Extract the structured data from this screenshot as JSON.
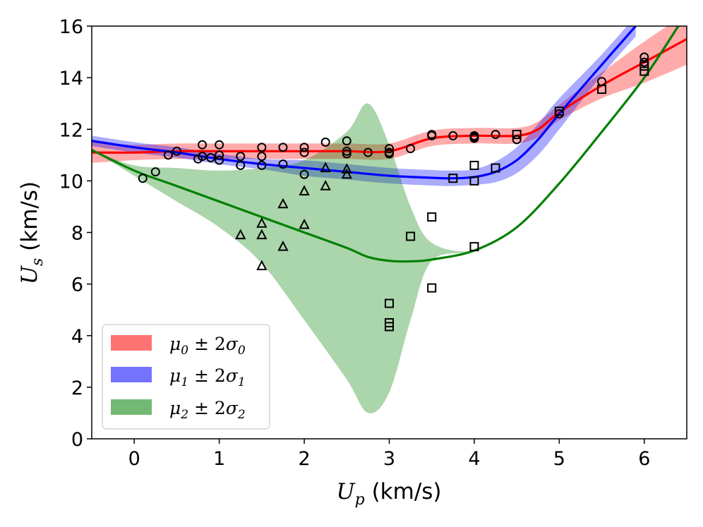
{
  "chart_data": {
    "type": "scatter",
    "title": "",
    "xlabel": "U_p (km/s)",
    "xlabel_main": "U",
    "xlabel_sub": "p",
    "xlabel_unit": " (km/s)",
    "ylabel": "U_s (km/s)",
    "ylabel_main": "U",
    "ylabel_sub": "s",
    "ylabel_unit": " (km/s)",
    "xlim": [
      -0.5,
      6.5
    ],
    "ylim": [
      0,
      16
    ],
    "xticks": [
      0,
      1,
      2,
      3,
      4,
      5,
      6
    ],
    "yticks": [
      0,
      2,
      4,
      6,
      8,
      10,
      12,
      14,
      16
    ],
    "grid": false,
    "legend_position": "lower-left",
    "legend": [
      {
        "label": "μ0 ± 2σ0",
        "mu": "μ",
        "sub": "0",
        "pm": " ± 2",
        "sigma": "σ",
        "sub2": "0",
        "color": "#ff0000"
      },
      {
        "label": "μ1 ± 2σ1",
        "mu": "μ",
        "sub": "1",
        "pm": " ± 2",
        "sigma": "σ",
        "sub2": "1",
        "color": "#0000ff"
      },
      {
        "label": "μ2 ± 2σ2",
        "mu": "μ",
        "sub": "2",
        "pm": " ± 2",
        "sigma": "σ",
        "sub2": "2",
        "color": "#008000"
      }
    ],
    "series": [
      {
        "name": "mu0",
        "color": "#ff0000",
        "x": [
          -0.5,
          0,
          0.5,
          1,
          1.5,
          2,
          2.5,
          3,
          3.5,
          4,
          4.5,
          4.75,
          5,
          5.5,
          6,
          6.5
        ],
        "mean": [
          11.1,
          11.1,
          11.15,
          11.15,
          11.15,
          11.15,
          11.15,
          11.15,
          11.65,
          11.75,
          11.75,
          12.0,
          12.65,
          13.7,
          14.6,
          15.5
        ],
        "sigma": [
          0.2,
          0.15,
          0.15,
          0.15,
          0.15,
          0.15,
          0.15,
          0.15,
          0.15,
          0.15,
          0.15,
          0.15,
          0.15,
          0.25,
          0.4,
          0.5
        ]
      },
      {
        "name": "mu1",
        "color": "#0000ff",
        "x": [
          -0.5,
          0,
          0.5,
          1,
          1.5,
          2,
          2.5,
          3,
          3.5,
          3.75,
          4,
          4.25,
          4.5,
          4.75,
          5,
          5.5,
          5.9
        ],
        "mean": [
          11.55,
          11.3,
          11.1,
          10.85,
          10.65,
          10.5,
          10.35,
          10.2,
          10.12,
          10.1,
          10.15,
          10.35,
          10.8,
          11.6,
          12.6,
          14.5,
          16.0
        ],
        "sigma": [
          0.1,
          0.1,
          0.1,
          0.1,
          0.1,
          0.15,
          0.15,
          0.15,
          0.15,
          0.15,
          0.15,
          0.2,
          0.25,
          0.3,
          0.3,
          0.2,
          0.2
        ]
      },
      {
        "name": "mu2",
        "color": "#008000",
        "x": [
          -0.5,
          0,
          0.5,
          1,
          1.5,
          2,
          2.5,
          2.75,
          3,
          3.25,
          3.5,
          4,
          4.5,
          5,
          5.5,
          6,
          6.4
        ],
        "mean": [
          11.2,
          10.4,
          9.8,
          9.2,
          8.6,
          8.0,
          7.4,
          7.05,
          6.9,
          6.88,
          6.95,
          7.3,
          8.2,
          9.9,
          11.9,
          14.0,
          16.0
        ],
        "lower": [
          11.2,
          10.2,
          9.2,
          8.2,
          6.8,
          4.6,
          2.3,
          1.0,
          1.8,
          4.6,
          6.9,
          7.3,
          8.2,
          9.9,
          11.9,
          14.0,
          16.0
        ],
        "upper": [
          11.2,
          10.6,
          10.5,
          10.4,
          10.5,
          10.8,
          11.9,
          13.0,
          11.4,
          9.0,
          7.6,
          7.3,
          8.2,
          9.9,
          11.9,
          14.0,
          16.0
        ]
      }
    ],
    "markers": {
      "circles": [
        [
          0.1,
          10.1
        ],
        [
          0.25,
          10.35
        ],
        [
          0.4,
          11.0
        ],
        [
          0.5,
          11.15
        ],
        [
          0.75,
          10.85
        ],
        [
          0.8,
          10.95
        ],
        [
          0.8,
          11.4
        ],
        [
          0.9,
          10.9
        ],
        [
          1.0,
          11.4
        ],
        [
          1.0,
          11.0
        ],
        [
          1.0,
          10.8
        ],
        [
          1.25,
          10.95
        ],
        [
          1.25,
          10.6
        ],
        [
          1.5,
          11.3
        ],
        [
          1.5,
          10.95
        ],
        [
          1.5,
          10.6
        ],
        [
          1.75,
          11.3
        ],
        [
          1.75,
          10.65
        ],
        [
          2.0,
          11.3
        ],
        [
          2.0,
          11.1
        ],
        [
          2.0,
          10.25
        ],
        [
          2.25,
          11.5
        ],
        [
          2.5,
          11.55
        ],
        [
          2.5,
          11.15
        ],
        [
          2.5,
          11.05
        ],
        [
          2.75,
          11.1
        ],
        [
          3.0,
          11.25
        ],
        [
          3.0,
          11.1
        ],
        [
          3.0,
          11.05
        ],
        [
          3.25,
          11.25
        ],
        [
          3.5,
          11.75
        ],
        [
          3.5,
          11.8
        ],
        [
          3.75,
          11.75
        ],
        [
          4.0,
          11.7
        ],
        [
          4.0,
          11.75
        ],
        [
          4.0,
          11.65
        ],
        [
          4.25,
          11.8
        ],
        [
          4.5,
          11.6
        ],
        [
          5.0,
          12.6
        ],
        [
          5.5,
          13.85
        ],
        [
          6.0,
          14.8
        ],
        [
          6.0,
          14.6
        ]
      ],
      "triangles": [
        [
          1.25,
          7.9
        ],
        [
          1.5,
          8.35
        ],
        [
          1.5,
          7.9
        ],
        [
          1.5,
          6.7
        ],
        [
          1.75,
          9.1
        ],
        [
          1.75,
          7.45
        ],
        [
          2.0,
          9.6
        ],
        [
          2.0,
          8.3
        ],
        [
          2.25,
          10.5
        ],
        [
          2.25,
          9.8
        ],
        [
          2.5,
          10.45
        ],
        [
          2.5,
          10.25
        ]
      ],
      "squares": [
        [
          3.0,
          5.25
        ],
        [
          3.0,
          4.5
        ],
        [
          3.0,
          4.35
        ],
        [
          3.25,
          7.85
        ],
        [
          3.5,
          8.6
        ],
        [
          3.5,
          5.85
        ],
        [
          3.75,
          10.1
        ],
        [
          4.0,
          10.6
        ],
        [
          4.0,
          10.0
        ],
        [
          4.0,
          7.45
        ],
        [
          4.25,
          10.5
        ],
        [
          4.5,
          11.8
        ],
        [
          5.0,
          12.7
        ],
        [
          5.5,
          13.55
        ],
        [
          6.0,
          14.45
        ],
        [
          6.0,
          14.25
        ]
      ]
    }
  }
}
